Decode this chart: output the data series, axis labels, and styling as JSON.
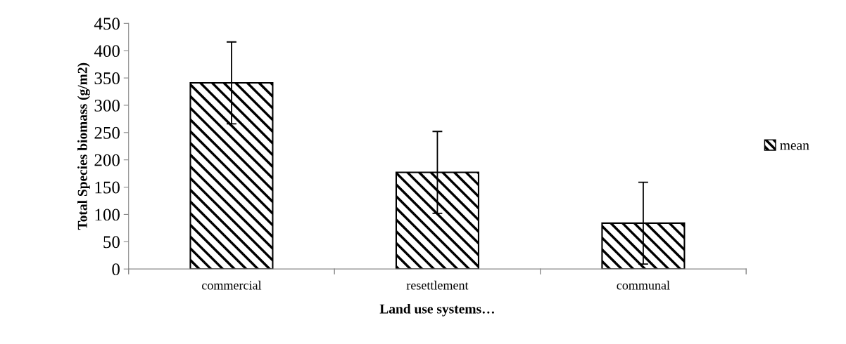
{
  "chart_data": {
    "type": "bar",
    "xlabel": "Land use systems…",
    "ylabel": "Total Species biomass (g/m2)",
    "categories": [
      "commercial",
      "resettlement",
      "communal"
    ],
    "series": [
      {
        "name": "mean",
        "color": "#000000",
        "values": [
          341,
          177,
          84
        ],
        "errors": [
          75,
          75,
          75
        ]
      }
    ],
    "ylim": [
      0,
      450
    ],
    "yticks": [
      0,
      50,
      100,
      150,
      200,
      250,
      300,
      350,
      400,
      450
    ],
    "grid": false,
    "legend": "right"
  }
}
